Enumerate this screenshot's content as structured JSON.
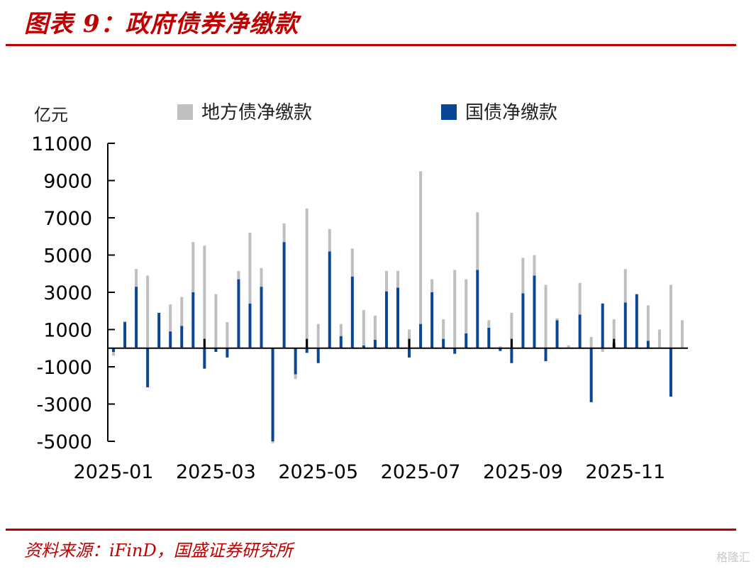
{
  "header": {
    "title": "图表 9：政府债券净缴款"
  },
  "footer": {
    "source": "资料来源：iFinD，国盛证券研究所",
    "watermark": "格隆汇"
  },
  "colors": {
    "local": "#bfbfbf",
    "treasury": "#0a4596",
    "axis": "#000000",
    "accent": "#c00000"
  },
  "chart_data": {
    "type": "bar",
    "stacked": true,
    "unit_label": "亿元",
    "ylim": [
      -5000,
      11000
    ],
    "yticks": [
      11000,
      9000,
      7000,
      5000,
      3000,
      1000,
      -1000,
      -3000,
      -5000
    ],
    "xtick_labels": [
      "2025-01",
      "2025-03",
      "2025-05",
      "2025-07",
      "2025-09",
      "2025-11"
    ],
    "xtick_label_index": [
      0,
      9,
      18,
      27,
      36,
      45
    ],
    "legend": [
      {
        "name": "地方债净缴款",
        "color": "#bfbfbf"
      },
      {
        "name": "国债净缴款",
        "color": "#0a4596"
      }
    ],
    "series": [
      {
        "name": "地方债净缴款",
        "values": [
          -200,
          50,
          950,
          3900,
          0,
          1450,
          1550,
          2700,
          5500,
          2900,
          1400,
          450,
          3800,
          1000,
          -100,
          1000,
          -250,
          7500,
          1300,
          1200,
          650,
          1500,
          1900,
          1300,
          1100,
          900,
          1000,
          8200,
          700,
          1050,
          4200,
          2900,
          3100,
          400,
          100,
          1900,
          1900,
          1100,
          3400,
          100,
          150,
          1700,
          600,
          -200,
          1250,
          1800,
          0,
          1900,
          1000,
          3400,
          1500
        ]
      },
      {
        "name": "国债净缴款",
        "values": [
          -200,
          1400,
          3300,
          -2100,
          1900,
          900,
          1200,
          3000,
          -1100,
          -200,
          -500,
          3700,
          2400,
          3300,
          -5000,
          5700,
          -1400,
          -250,
          -800,
          5200,
          650,
          3850,
          150,
          450,
          3050,
          3250,
          -500,
          1300,
          3000,
          500,
          -300,
          800,
          4200,
          1100,
          -150,
          -800,
          2950,
          3900,
          -700,
          1500,
          0,
          1800,
          -2900,
          2400,
          300,
          2450,
          2900,
          400,
          0,
          -2600,
          0
        ]
      }
    ],
    "black_markers": [
      {
        "index": 8,
        "value": 500
      },
      {
        "index": 17,
        "value": 500
      },
      {
        "index": 26,
        "value": 500
      },
      {
        "index": 35,
        "value": 500
      },
      {
        "index": 44,
        "value": 500
      }
    ]
  }
}
